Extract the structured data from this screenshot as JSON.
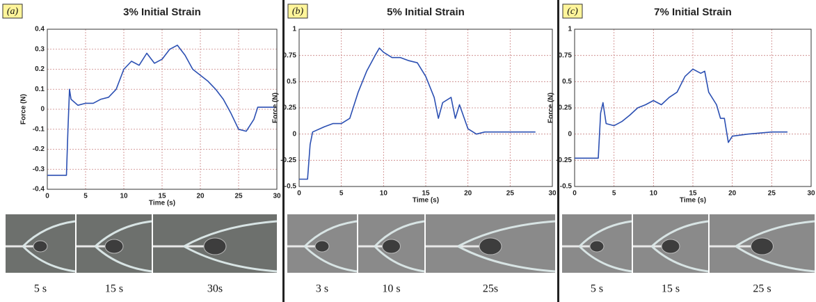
{
  "chart_data": [
    {
      "type": "line",
      "title": "3% Initial Strain",
      "x_label": "Time (s)",
      "y_label": "Force (N)",
      "color": "#2b4fb2",
      "grid": true,
      "xlim": [
        0,
        30
      ],
      "xticks": [
        0,
        5,
        10,
        15,
        20,
        25,
        30
      ],
      "ylim": [
        -0.4,
        0.4
      ],
      "yticks": [
        -0.4,
        -0.3,
        -0.2,
        -0.1,
        0,
        0.1,
        0.2,
        0.3,
        0.4
      ],
      "x": [
        0,
        2.5,
        2.7,
        2.9,
        3.1,
        4,
        5,
        6,
        7,
        8,
        9,
        10,
        11,
        12,
        13,
        14,
        15,
        16,
        17,
        18,
        19,
        20,
        21,
        22,
        23,
        24,
        25,
        26,
        27,
        27.5,
        30
      ],
      "values": [
        -0.33,
        -0.33,
        -0.1,
        0.1,
        0.05,
        0.02,
        0.03,
        0.03,
        0.05,
        0.06,
        0.1,
        0.2,
        0.24,
        0.22,
        0.28,
        0.23,
        0.25,
        0.3,
        0.32,
        0.27,
        0.2,
        0.17,
        0.14,
        0.1,
        0.05,
        -0.02,
        -0.1,
        -0.11,
        -0.05,
        0.01,
        0.01
      ]
    },
    {
      "type": "line",
      "title": "5% Initial Strain",
      "x_label": "Time (s)",
      "y_label": "Force (N)",
      "color": "#2b4fb2",
      "grid": true,
      "xlim": [
        0,
        30
      ],
      "xticks": [
        0,
        5,
        10,
        15,
        20,
        25,
        30
      ],
      "ylim": [
        -0.5,
        1
      ],
      "yticks": [
        -0.5,
        -0.25,
        0,
        0.25,
        0.5,
        0.75,
        1
      ],
      "x": [
        0,
        1,
        1.3,
        1.6,
        3,
        4,
        5,
        6,
        7,
        8,
        9,
        9.5,
        10,
        11,
        12,
        13,
        14,
        15,
        16,
        16.5,
        17,
        18,
        18.5,
        19,
        20,
        21,
        22,
        25,
        28
      ],
      "values": [
        -0.43,
        -0.43,
        -0.1,
        0.02,
        0.07,
        0.1,
        0.1,
        0.15,
        0.4,
        0.6,
        0.75,
        0.82,
        0.78,
        0.73,
        0.73,
        0.7,
        0.68,
        0.55,
        0.35,
        0.15,
        0.3,
        0.35,
        0.15,
        0.28,
        0.05,
        0,
        0.02,
        0.02,
        0.02
      ]
    },
    {
      "type": "line",
      "title": "7% Initial Strain",
      "x_label": "Time (s)",
      "y_label": "Force (N)",
      "color": "#2b4fb2",
      "grid": true,
      "xlim": [
        0,
        30
      ],
      "xticks": [
        0,
        5,
        10,
        15,
        20,
        25,
        30
      ],
      "ylim": [
        -0.5,
        1
      ],
      "yticks": [
        -0.5,
        -0.25,
        0,
        0.25,
        0.5,
        0.75,
        1
      ],
      "x": [
        0,
        3,
        3.3,
        3.6,
        4,
        5,
        6,
        7,
        8,
        9,
        10,
        11,
        12,
        13,
        14,
        15,
        16,
        16.5,
        17,
        18,
        18.5,
        19,
        19.5,
        20,
        22,
        25,
        27
      ],
      "values": [
        -0.23,
        -0.23,
        0.2,
        0.3,
        0.1,
        0.08,
        0.12,
        0.18,
        0.25,
        0.28,
        0.32,
        0.28,
        0.35,
        0.4,
        0.55,
        0.62,
        0.58,
        0.6,
        0.4,
        0.28,
        0.15,
        0.15,
        -0.08,
        -0.02,
        0,
        0.02,
        0.02
      ]
    }
  ],
  "panels": [
    {
      "label": "(a)",
      "captions": [
        "5 s",
        "15 s",
        "30s"
      ]
    },
    {
      "label": "(b)",
      "captions": [
        "3 s",
        "10 s",
        "25s"
      ]
    },
    {
      "label": "(c)",
      "captions": [
        "5 s",
        "15 s",
        "25 s"
      ]
    }
  ]
}
